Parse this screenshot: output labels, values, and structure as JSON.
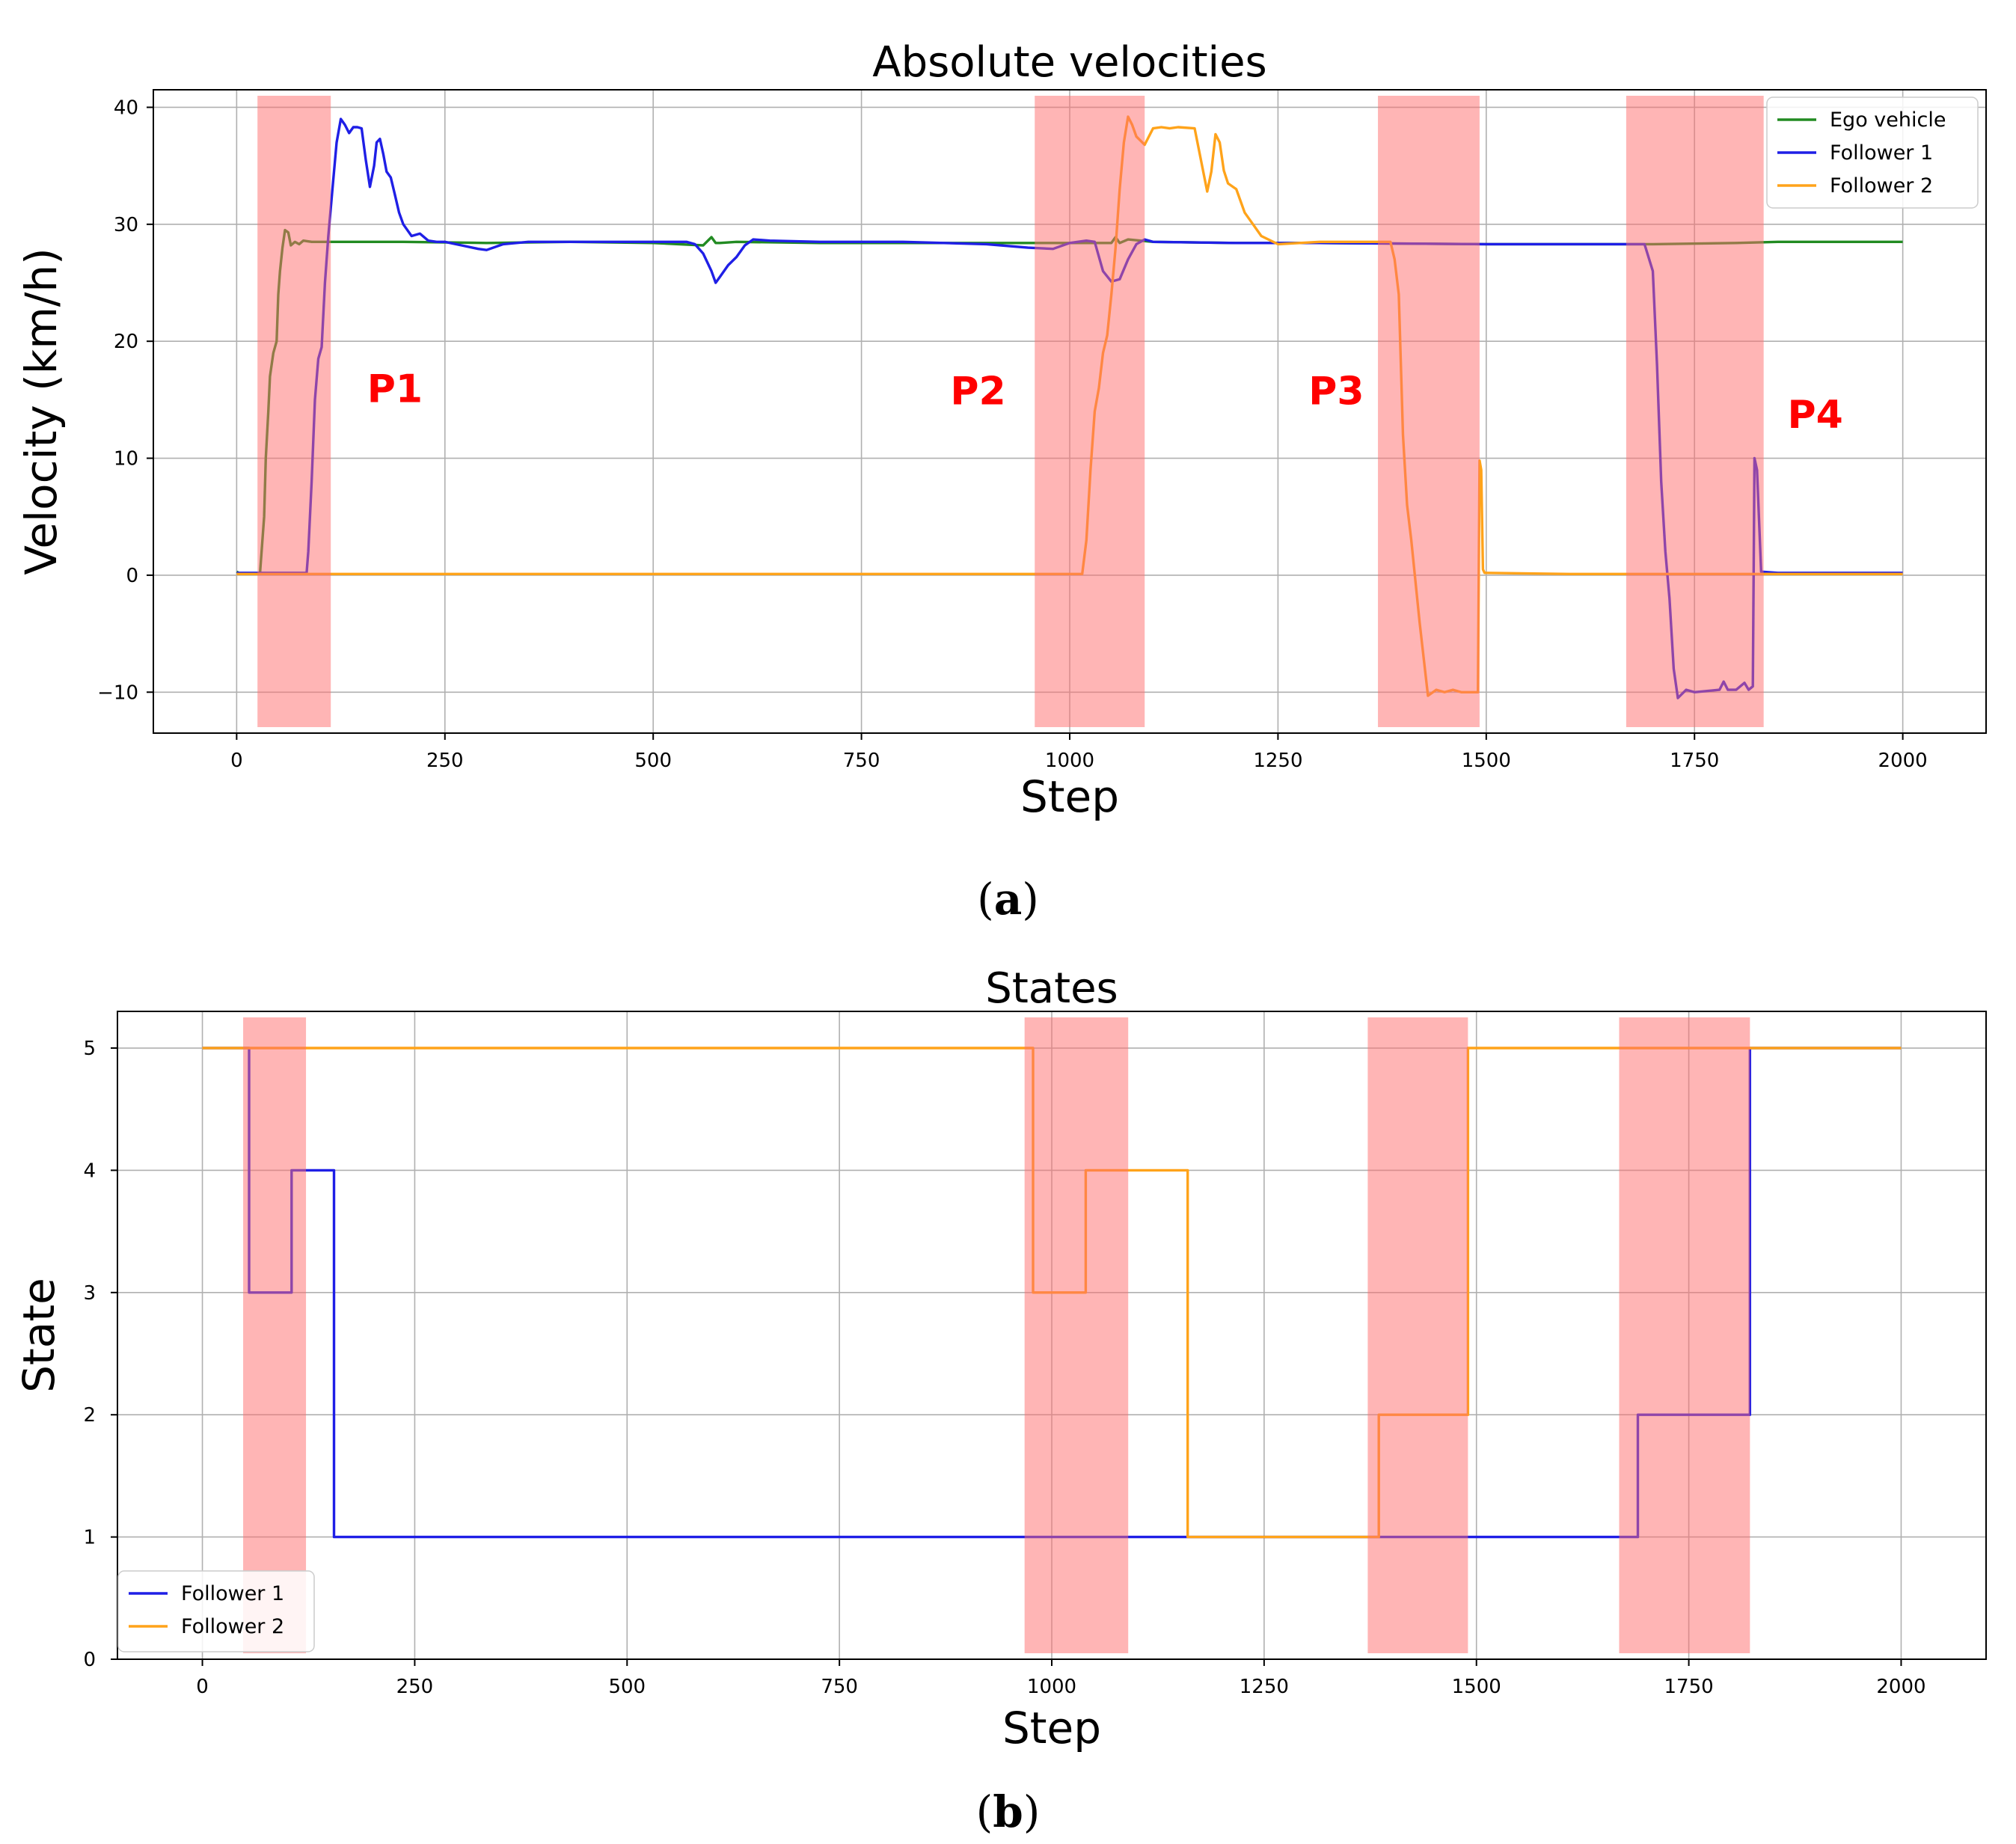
{
  "chart_data": [
    {
      "type": "line",
      "panel_label": "a",
      "title": "Absolute velocities",
      "xlabel": "Step",
      "ylabel": "Velocity (km/h)",
      "xlim": [
        -100,
        2100
      ],
      "ylim": [
        -13.5,
        41.5
      ],
      "xticks": [
        0,
        250,
        500,
        750,
        1000,
        1250,
        1500,
        1750,
        2000
      ],
      "yticks": [
        -10,
        0,
        10,
        20,
        30,
        40
      ],
      "ytick_labels": [
        "−10",
        "0",
        "10",
        "20",
        "30",
        "40"
      ],
      "grid": true,
      "legend_position": "top-right",
      "shaded_regions": [
        [
          25,
          113
        ],
        [
          958,
          1090
        ],
        [
          1370,
          1492
        ],
        [
          1668,
          1833
        ]
      ],
      "annotations": [
        {
          "text": "P1",
          "x": 190,
          "y": 14.8
        },
        {
          "text": "P2",
          "x": 890,
          "y": 14.6
        },
        {
          "text": "P3",
          "x": 1320,
          "y": 14.6
        },
        {
          "text": "P4",
          "x": 1895,
          "y": 12.6
        }
      ],
      "series": [
        {
          "name": "Ego vehicle",
          "color": "#228b22",
          "x": [
            0,
            5,
            28,
            33,
            35,
            38,
            40,
            44,
            48,
            50,
            52,
            55,
            58,
            62,
            65,
            70,
            75,
            80,
            90,
            100,
            120,
            200,
            300,
            400,
            500,
            560,
            570,
            575,
            580,
            600,
            700,
            900,
            1000,
            1050,
            1055,
            1060,
            1070,
            1100,
            1200,
            1300,
            1500,
            1700,
            1800,
            1850,
            2000
          ],
          "y": [
            0.3,
            0.1,
            0.1,
            5,
            10,
            14,
            17,
            19,
            20,
            24,
            26,
            28,
            29.5,
            29.3,
            28.2,
            28.5,
            28.3,
            28.6,
            28.5,
            28.5,
            28.5,
            28.5,
            28.4,
            28.5,
            28.4,
            28.2,
            28.9,
            28.4,
            28.4,
            28.5,
            28.4,
            28.4,
            28.4,
            28.4,
            28.9,
            28.4,
            28.7,
            28.5,
            28.4,
            28.4,
            28.3,
            28.3,
            28.4,
            28.5,
            28.5
          ]
        },
        {
          "name": "Follower 1",
          "color": "#1f1fe6",
          "x": [
            0,
            84,
            86,
            90,
            94,
            98,
            102,
            106,
            110,
            115,
            120,
            125,
            130,
            135,
            140,
            145,
            150,
            155,
            160,
            165,
            168,
            172,
            176,
            180,
            185,
            190,
            195,
            200,
            210,
            220,
            230,
            240,
            250,
            270,
            290,
            300,
            320,
            350,
            400,
            450,
            500,
            540,
            550,
            560,
            570,
            575,
            580,
            590,
            600,
            610,
            620,
            640,
            700,
            800,
            900,
            950,
            980,
            1000,
            1020,
            1030,
            1040,
            1050,
            1060,
            1070,
            1080,
            1090,
            1100,
            1200,
            1300,
            1500,
            1690,
            1700,
            1705,
            1710,
            1715,
            1720,
            1725,
            1730,
            1740,
            1750,
            1780,
            1785,
            1790,
            1800,
            1810,
            1815,
            1820,
            1822,
            1825,
            1830,
            1850,
            2000
          ],
          "y": [
            0.2,
            0.2,
            2,
            8,
            15,
            18.5,
            19.5,
            25,
            29,
            33,
            37,
            39,
            38.5,
            37.8,
            38.3,
            38.3,
            38.2,
            35.5,
            33.2,
            35,
            37,
            37.3,
            36,
            34.5,
            34,
            32.5,
            31,
            30,
            29,
            29.2,
            28.6,
            28.5,
            28.5,
            28.2,
            27.9,
            27.8,
            28.3,
            28.5,
            28.5,
            28.5,
            28.5,
            28.5,
            28.3,
            27.5,
            26,
            25,
            25.5,
            26.5,
            27.2,
            28.2,
            28.7,
            28.6,
            28.5,
            28.5,
            28.3,
            28.0,
            27.9,
            28.4,
            28.6,
            28.5,
            26,
            25.1,
            25.3,
            27,
            28.3,
            28.7,
            28.5,
            28.4,
            28.4,
            28.3,
            28.3,
            26,
            18,
            8,
            2,
            -2,
            -8,
            -10.5,
            -9.8,
            -10,
            -9.8,
            -9.1,
            -9.8,
            -9.8,
            -9.2,
            -9.8,
            -9.5,
            10,
            9,
            0.3,
            0.2,
            0.2
          ]
        },
        {
          "name": "Follower 2",
          "color": "#ffa31a",
          "x": [
            0,
            1015,
            1020,
            1025,
            1030,
            1035,
            1040,
            1045,
            1050,
            1055,
            1060,
            1065,
            1070,
            1075,
            1080,
            1090,
            1100,
            1110,
            1120,
            1130,
            1150,
            1165,
            1170,
            1175,
            1180,
            1185,
            1190,
            1200,
            1210,
            1220,
            1230,
            1250,
            1300,
            1350,
            1385,
            1390,
            1395,
            1400,
            1405,
            1410,
            1420,
            1430,
            1440,
            1450,
            1460,
            1470,
            1490,
            1492,
            1494,
            1496,
            1498,
            1500,
            1600,
            2000
          ],
          "y": [
            0.1,
            0.1,
            3,
            9,
            14,
            16,
            19,
            20.5,
            24,
            28,
            33,
            37,
            39.2,
            38.5,
            37.5,
            36.8,
            38.2,
            38.3,
            38.2,
            38.3,
            38.2,
            32.8,
            34.5,
            37.7,
            37,
            34.6,
            33.5,
            33,
            31,
            30,
            29,
            28.3,
            28.5,
            28.5,
            28.5,
            27,
            24,
            12,
            6,
            3,
            -4,
            -10.3,
            -9.8,
            -10,
            -9.8,
            -10,
            -10,
            9.8,
            9,
            0.5,
            0.2,
            0.2,
            0.1,
            0.1
          ]
        }
      ]
    },
    {
      "type": "line",
      "panel_label": "b",
      "title": "States",
      "xlabel": "Step",
      "ylabel": "State",
      "xlim": [
        -100,
        2100
      ],
      "ylim": [
        0,
        5.3
      ],
      "xticks": [
        0,
        250,
        500,
        750,
        1000,
        1250,
        1500,
        1750,
        2000
      ],
      "yticks": [
        0,
        1,
        2,
        3,
        4,
        5
      ],
      "grid": true,
      "legend_position": "bottom-left",
      "shaded_regions": [
        [
          48,
          122
        ],
        [
          968,
          1090
        ],
        [
          1372,
          1490
        ],
        [
          1668,
          1822
        ]
      ],
      "series": [
        {
          "name": "Follower 1",
          "color": "#1f1fe6",
          "x": [
            0,
            55,
            55,
            105,
            105,
            155,
            155,
            1690,
            1690,
            1822,
            1822,
            2000
          ],
          "y": [
            5,
            5,
            3,
            3,
            4,
            4,
            1,
            1,
            2,
            2,
            5,
            5
          ]
        },
        {
          "name": "Follower 2",
          "color": "#ffa31a",
          "x": [
            0,
            978,
            978,
            1040,
            1040,
            1160,
            1160,
            1385,
            1385,
            1490,
            1490,
            2000
          ],
          "y": [
            5,
            5,
            3,
            3,
            4,
            4,
            1,
            1,
            2,
            2,
            5,
            5
          ]
        }
      ]
    }
  ],
  "captions": {
    "a": "a",
    "b": "b"
  }
}
